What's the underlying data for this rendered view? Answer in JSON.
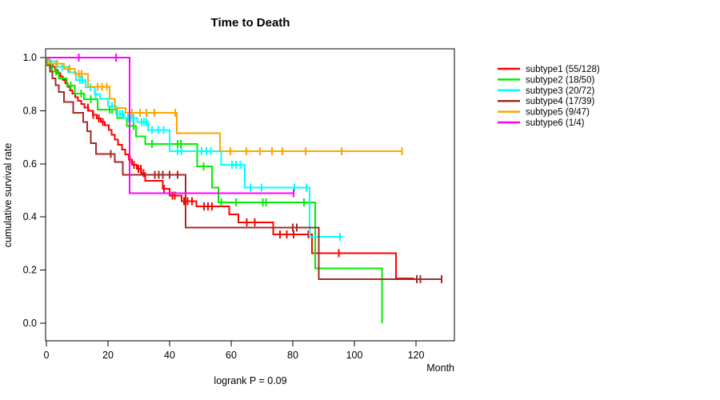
{
  "title": "Time to Death",
  "footer": "logrank P = 0.09",
  "axes": {
    "x": {
      "label": "Month",
      "ticks": [
        0,
        20,
        40,
        60,
        80,
        100,
        120
      ],
      "range": [
        0,
        132
      ]
    },
    "y": {
      "label": "cumulative survival rate",
      "ticks": [
        0.0,
        0.2,
        0.4,
        0.6,
        0.8,
        1.0
      ],
      "range": [
        0,
        1
      ]
    }
  },
  "legend": {
    "items": [
      {
        "label": "subtype1 (55/128)",
        "color": "#ff0000"
      },
      {
        "label": "subtype2 (18/50)",
        "color": "#00ee00"
      },
      {
        "label": "subtype3 (20/72)",
        "color": "#00ffff"
      },
      {
        "label": "subtype4 (17/39)",
        "color": "#a52a2a"
      },
      {
        "label": "subtype5 (9/47)",
        "color": "#ffa500"
      },
      {
        "label": "subtype6 (1/4)",
        "color": "#ff00ff"
      }
    ]
  },
  "chart_data": {
    "type": "line",
    "chart_kind": "kaplan-meier-step",
    "title": "Time to Death",
    "xlabel": "Month",
    "ylabel": "cumulative survival rate",
    "xlim": [
      0,
      132
    ],
    "ylim": [
      0,
      1.04
    ],
    "grid": false,
    "legend_position": "right-outside",
    "annotation": "logrank P = 0.09",
    "series": [
      {
        "name": "subtype1 (55/128)",
        "color": "#ff0000",
        "steps": [
          [
            0,
            1
          ],
          [
            0.6,
            0.989
          ],
          [
            1.3,
            0.977
          ],
          [
            2.1,
            0.965
          ],
          [
            2.9,
            0.953
          ],
          [
            3.7,
            0.941
          ],
          [
            4.5,
            0.929
          ],
          [
            5.3,
            0.916
          ],
          [
            6.1,
            0.903
          ],
          [
            6.9,
            0.89
          ],
          [
            7.7,
            0.877
          ],
          [
            8.5,
            0.864
          ],
          [
            9.4,
            0.851
          ],
          [
            10.3,
            0.838
          ],
          [
            11.3,
            0.825
          ],
          [
            12.4,
            0.812
          ],
          [
            13.6,
            0.799
          ],
          [
            15,
            0.785
          ],
          [
            16.3,
            0.771
          ],
          [
            17.6,
            0.758
          ],
          [
            19,
            0.745
          ],
          [
            20.2,
            0.728
          ],
          [
            21.2,
            0.71
          ],
          [
            22.2,
            0.691
          ],
          [
            23.3,
            0.672
          ],
          [
            24.5,
            0.654
          ],
          [
            25.6,
            0.635
          ],
          [
            26.7,
            0.616
          ],
          [
            27.8,
            0.597
          ],
          [
            29.4,
            0.581
          ],
          [
            30.8,
            0.565
          ],
          [
            32.1,
            0.536
          ],
          [
            37.8,
            0.506
          ],
          [
            40,
            0.481
          ],
          [
            43.9,
            0.46
          ],
          [
            48.7,
            0.44
          ],
          [
            59.4,
            0.41
          ],
          [
            62.4,
            0.38
          ],
          [
            73.7,
            0.334
          ],
          [
            86.2,
            0.264
          ],
          [
            113.5,
            0.168
          ]
        ],
        "end_month": 119.4,
        "censors": [
          13.5,
          15.2,
          17,
          18.3,
          27.2,
          28.4,
          29.9,
          30.7,
          31.5,
          38.2,
          40.9,
          41.7,
          44.7,
          45.9,
          47.3,
          51.2,
          52.5,
          53.8,
          65,
          67.6,
          75.8,
          78,
          80.3,
          85,
          94.9
        ]
      },
      {
        "name": "subtype2 (18/50)",
        "color": "#00ee00",
        "steps": [
          [
            0,
            1
          ],
          [
            0.3,
            0.97
          ],
          [
            1.8,
            0.948
          ],
          [
            4,
            0.922
          ],
          [
            6.6,
            0.894
          ],
          [
            9.2,
            0.864
          ],
          [
            12.2,
            0.844
          ],
          [
            16.6,
            0.804
          ],
          [
            23,
            0.773
          ],
          [
            26.1,
            0.743
          ],
          [
            29.1,
            0.703
          ],
          [
            32.1,
            0.675
          ],
          [
            49,
            0.59
          ],
          [
            53.8,
            0.51
          ],
          [
            55.9,
            0.455
          ],
          [
            87.3,
            0.207
          ],
          [
            109,
            0
          ]
        ],
        "end_month": 109,
        "censors": [
          1.4,
          3.1,
          7.9,
          11.3,
          14.4,
          20.5,
          21.3,
          28.3,
          34.3,
          42.6,
          43.6,
          51,
          56.8,
          61.6,
          70.3,
          71.3,
          83.6
        ]
      },
      {
        "name": "subtype3 (20/72)",
        "color": "#00ffff",
        "steps": [
          [
            0,
            1
          ],
          [
            1,
            0.986
          ],
          [
            3.1,
            0.966
          ],
          [
            7,
            0.944
          ],
          [
            9.6,
            0.916
          ],
          [
            12.7,
            0.888
          ],
          [
            15.7,
            0.861
          ],
          [
            17.4,
            0.845
          ],
          [
            20,
            0.818
          ],
          [
            22.6,
            0.788
          ],
          [
            25.2,
            0.773
          ],
          [
            29.5,
            0.758
          ],
          [
            33,
            0.728
          ],
          [
            40,
            0.647
          ],
          [
            56.8,
            0.597
          ],
          [
            64.4,
            0.511
          ],
          [
            85.4,
            0.325
          ]
        ],
        "end_month": 96.1,
        "censors": [
          5,
          10.9,
          11.7,
          14.3,
          16,
          21.3,
          23.9,
          24.7,
          26.5,
          27.7,
          28.3,
          30.9,
          31.7,
          32.5,
          34.3,
          36.4,
          38.1,
          42.6,
          43.9,
          50.4,
          51.9,
          53.4,
          60.3,
          61.6,
          63,
          66.2,
          69.9,
          80.5,
          84.4,
          95.3
        ]
      },
      {
        "name": "subtype4 (17/39)",
        "color": "#a52a2a",
        "steps": [
          [
            0,
            1
          ],
          [
            0.4,
            0.974
          ],
          [
            1.2,
            0.948
          ],
          [
            2,
            0.922
          ],
          [
            3,
            0.896
          ],
          [
            4,
            0.87
          ],
          [
            5.7,
            0.833
          ],
          [
            8.7,
            0.792
          ],
          [
            12,
            0.757
          ],
          [
            13.3,
            0.723
          ],
          [
            14.4,
            0.677
          ],
          [
            16.1,
            0.637
          ],
          [
            22.2,
            0.607
          ],
          [
            24.8,
            0.559
          ],
          [
            45.2,
            0.36
          ],
          [
            88.4,
            0.166
          ]
        ],
        "end_month": 128.3,
        "censors": [
          20.9,
          35.2,
          36.5,
          37.8,
          40,
          42.6,
          80,
          81.3,
          120.2,
          121.4,
          128.3
        ]
      },
      {
        "name": "subtype5 (9/47)",
        "color": "#ffa500",
        "steps": [
          [
            0,
            1
          ],
          [
            0.5,
            0.978
          ],
          [
            5.7,
            0.958
          ],
          [
            9.2,
            0.938
          ],
          [
            13.5,
            0.89
          ],
          [
            20.5,
            0.845
          ],
          [
            22.2,
            0.81
          ],
          [
            25.7,
            0.792
          ],
          [
            42.3,
            0.715
          ],
          [
            56.4,
            0.648
          ]
        ],
        "end_month": 115.5,
        "censors": [
          3.5,
          7.5,
          10.5,
          11.4,
          16.6,
          18,
          19.6,
          27.8,
          30.4,
          32.5,
          35.1,
          41.8,
          59.7,
          64.9,
          69.4,
          73.2,
          76.6,
          84.2,
          95.8,
          115.5
        ]
      },
      {
        "name": "subtype6 (1/4)",
        "color": "#ff00ff",
        "steps": [
          [
            0,
            1
          ],
          [
            27,
            0.49
          ]
        ],
        "end_month": 80.3,
        "censors": [
          10.5,
          22.6,
          80.3
        ]
      }
    ]
  }
}
